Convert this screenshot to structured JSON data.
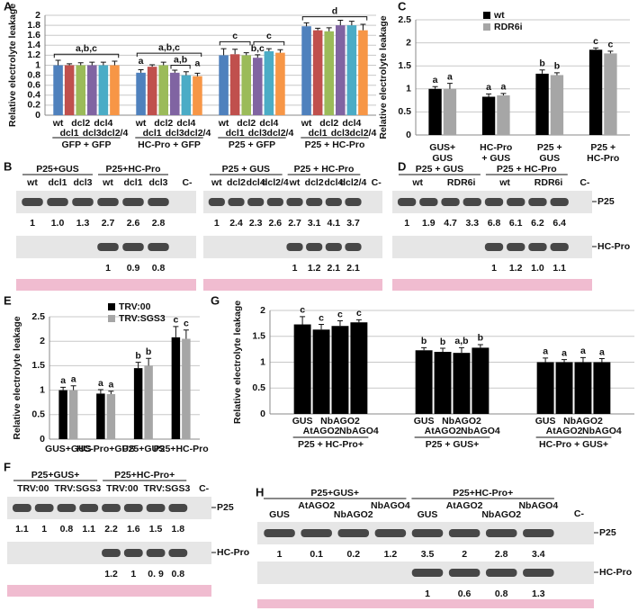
{
  "chart_data": [
    {
      "type": "bar",
      "panel": "A",
      "ylabel": "Relative electrolyte leakage",
      "ylim": [
        0,
        2
      ],
      "yticks": [
        0,
        0.2,
        0.4,
        0.6,
        0.8,
        1,
        1.2,
        1.4,
        1.6,
        1.8,
        2
      ],
      "grid": true,
      "bar_labels": true,
      "categories": [
        [
          "GFP + GFP"
        ],
        [
          "HC-Pro + GFP"
        ],
        [
          "P25 + GFP"
        ],
        [
          "P25 + HC-Pro"
        ]
      ],
      "series": [
        {
          "name": "wt",
          "color": "#4f81bd",
          "values": [
            1.0,
            0.85,
            1.2,
            1.78
          ],
          "errors": [
            0.1,
            0.06,
            0.13,
            0.07
          ]
        },
        {
          "name": "dcl1",
          "color": "#c0504d",
          "values": [
            1.0,
            0.97,
            1.22,
            1.7
          ],
          "errors": [
            0.03,
            0.04,
            0.1,
            0.04
          ]
        },
        {
          "name": "dcl2",
          "color": "#9bbb59",
          "values": [
            1.0,
            1.0,
            1.2,
            1.68
          ],
          "errors": [
            0.05,
            0.06,
            0.05,
            0.07
          ]
        },
        {
          "name": "dcl3",
          "color": "#8064a2",
          "values": [
            1.0,
            0.85,
            1.15,
            1.8
          ],
          "errors": [
            0.06,
            0.05,
            0.06,
            0.1
          ]
        },
        {
          "name": "dcl4",
          "color": "#4bacc6",
          "values": [
            1.0,
            0.8,
            1.28,
            1.8
          ],
          "errors": [
            0.06,
            0.07,
            0.05,
            0.08
          ]
        },
        {
          "name": "dcl2/4",
          "color": "#f79646",
          "values": [
            1.0,
            0.78,
            1.25,
            1.7
          ],
          "errors": [
            0.08,
            0.06,
            0.06,
            0.12
          ]
        }
      ],
      "annotations": [
        "a,b,c",
        "a,b,c",
        "a",
        "a,b",
        "a",
        "c",
        "b,c",
        "c",
        "d"
      ]
    },
    {
      "type": "bar",
      "panel": "C",
      "ylabel": "Relative electrolyte leakage",
      "ylim": [
        0,
        2.5
      ],
      "yticks": [
        0,
        0.5,
        1,
        1.5,
        2,
        2.5
      ],
      "grid": true,
      "legend": "top",
      "categories": [
        [
          "GUS+",
          "GUS"
        ],
        [
          "HC-Pro",
          "+ GUS"
        ],
        [
          "P25 +",
          "GUS"
        ],
        [
          "P25 +",
          "HC-Pro"
        ]
      ],
      "series": [
        {
          "name": "wt",
          "color": "#000000",
          "values": [
            1.0,
            0.83,
            1.33,
            1.85
          ],
          "errors": [
            0.05,
            0.06,
            0.08,
            0.04
          ],
          "letters": [
            "a",
            "a",
            "b",
            "c"
          ]
        },
        {
          "name": "RDR6i",
          "color": "#a6a6a6",
          "values": [
            1.0,
            0.86,
            1.3,
            1.77
          ],
          "errors": [
            0.12,
            0.04,
            0.05,
            0.05
          ],
          "letters": [
            "a",
            "a",
            "b",
            "c"
          ]
        }
      ]
    },
    {
      "type": "bar",
      "panel": "E",
      "ylabel": "Relative electrolyte leakage",
      "ylim": [
        0,
        2.5
      ],
      "yticks": [
        0,
        0.5,
        1,
        1.5,
        2,
        2.5
      ],
      "grid": true,
      "legend": "top",
      "categories": [
        [
          "GUS+GUS"
        ],
        [
          "HC-Pro+GUS"
        ],
        [
          "P25+GUS"
        ],
        [
          "P25+HC-Pro"
        ]
      ],
      "series": [
        {
          "name": "TRV:00",
          "color": "#000000",
          "values": [
            1.0,
            0.93,
            1.45,
            2.08
          ],
          "errors": [
            0.06,
            0.08,
            0.12,
            0.22
          ],
          "letters": [
            "a",
            "a",
            "b",
            "c"
          ]
        },
        {
          "name": "TRV:SGS3",
          "color": "#a6a6a6",
          "values": [
            1.0,
            0.92,
            1.5,
            2.05
          ],
          "errors": [
            0.09,
            0.06,
            0.15,
            0.18
          ],
          "letters": [
            "a",
            "a",
            "b",
            "c"
          ]
        }
      ]
    },
    {
      "type": "bar",
      "panel": "G",
      "ylabel": "Relative electrolyte leakage",
      "ylim": [
        0,
        2
      ],
      "yticks": [
        0,
        0.5,
        1,
        1.5,
        2
      ],
      "grid": true,
      "bar_labels": true,
      "categories": [
        [
          "P25 + HC-Pro+"
        ],
        [
          "P25 + GUS+"
        ],
        [
          "HC-Pro + GUS+"
        ]
      ],
      "series": [
        {
          "name": "GUS",
          "color": "#000000",
          "values": [
            1.73,
            1.23,
            1.0
          ],
          "errors": [
            0.15,
            0.05,
            0.08
          ],
          "letters": [
            "c",
            "b",
            "a"
          ]
        },
        {
          "name": "AtAGO2",
          "color": "#000000",
          "values": [
            1.63,
            1.2,
            1.0
          ],
          "errors": [
            0.1,
            0.07,
            0.05
          ],
          "letters": [
            "c",
            "b",
            "a"
          ]
        },
        {
          "name": "NbAGO2",
          "color": "#000000",
          "values": [
            1.7,
            1.18,
            1.0
          ],
          "errors": [
            0.1,
            0.1,
            0.09
          ],
          "letters": [
            "c",
            "a,b",
            "a"
          ]
        },
        {
          "name": "NbAGO4",
          "color": "#000000",
          "values": [
            1.77,
            1.28,
            1.0
          ],
          "errors": [
            0.05,
            0.06,
            0.07
          ],
          "letters": [
            "c",
            "b",
            "a"
          ]
        }
      ]
    }
  ],
  "blots": [
    {
      "panel": "B",
      "headers": [
        {
          "text": "P25+GUS",
          "lanes": [
            "wt",
            "dcl1",
            "dcl3"
          ]
        },
        {
          "text": "P25+HC-Pro",
          "lanes": [
            "wt",
            "dcl1",
            "dcl3"
          ]
        }
      ],
      "control": "C-",
      "rows": [
        {
          "values": [
            "1",
            "1.0",
            "1.3",
            "2.7",
            "2.6",
            "2.8"
          ]
        },
        {
          "values": [
            null,
            null,
            null,
            "1",
            "0.9",
            "0.8"
          ]
        }
      ]
    },
    {
      "headers": [
        {
          "text": "P25 + GUS",
          "lanes": [
            "wt",
            "dcl2",
            "dcl4",
            "dcl2/4"
          ]
        },
        {
          "text": "P25 + HC-Pro",
          "lanes": [
            "wt",
            "dcl2",
            "dcl4",
            "dcl2/4"
          ]
        }
      ],
      "control": "C-",
      "rows": [
        {
          "values": [
            "1",
            "2.4",
            "2.3",
            "2.6",
            "2.7",
            "3.1",
            "4.1",
            "3.7"
          ]
        },
        {
          "values": [
            null,
            null,
            null,
            null,
            "1",
            "1.2",
            "2.1",
            "2.1"
          ]
        }
      ]
    },
    {
      "panel": "D",
      "headers": [
        {
          "text": "P25 + GUS",
          "lanes": [
            "wt",
            "RDR6i"
          ]
        },
        {
          "text": "P25 + HC-Pro",
          "lanes": [
            "wt",
            "RDR6i"
          ]
        }
      ],
      "control": "C-",
      "rows": [
        {
          "label": "P25",
          "values": [
            "1",
            "1.9",
            "4.7",
            "3.3",
            "6.8",
            "6.1",
            "6.2",
            "6.4"
          ]
        },
        {
          "label": "HC-Pro",
          "values": [
            null,
            null,
            null,
            null,
            "1",
            "1.2",
            "1.0",
            "1.1"
          ]
        }
      ]
    },
    {
      "panel": "F",
      "headers": [
        {
          "text": "P25+GUS+",
          "lanes": [
            "TRV:00",
            "TRV:SGS3"
          ]
        },
        {
          "text": "P25+HC-Pro+",
          "lanes": [
            "TRV:00",
            "TRV:SGS3"
          ]
        }
      ],
      "control": "C-",
      "rows": [
        {
          "label": "P25",
          "values": [
            "1.1",
            "1",
            "0.8",
            "1.1",
            "2.2",
            "1.6",
            "1.5",
            "1.8"
          ]
        },
        {
          "label": "HC-Pro",
          "values": [
            null,
            null,
            null,
            null,
            "1.2",
            "1",
            "0. 9",
            "0.8"
          ]
        }
      ]
    },
    {
      "panel": "H",
      "headers": [
        {
          "text": "P25+GUS+",
          "lanes": [
            "GUS",
            "AtAGO2",
            "NbAGO2",
            "NbAGO4"
          ]
        },
        {
          "text": "P25+HC-Pro+",
          "lanes": [
            "GUS",
            "AtAGO2",
            "NbAGO2",
            "NbAGO4"
          ]
        }
      ],
      "control": "C-",
      "rows": [
        {
          "label": "P25",
          "values": [
            "1",
            "0.1",
            "0.2",
            "1.2",
            "3.5",
            "2",
            "2.8",
            "3.4"
          ]
        },
        {
          "label": "HC-Pro",
          "values": [
            null,
            null,
            null,
            null,
            "1",
            "0.6",
            "0.8",
            "1.3"
          ]
        }
      ]
    }
  ]
}
